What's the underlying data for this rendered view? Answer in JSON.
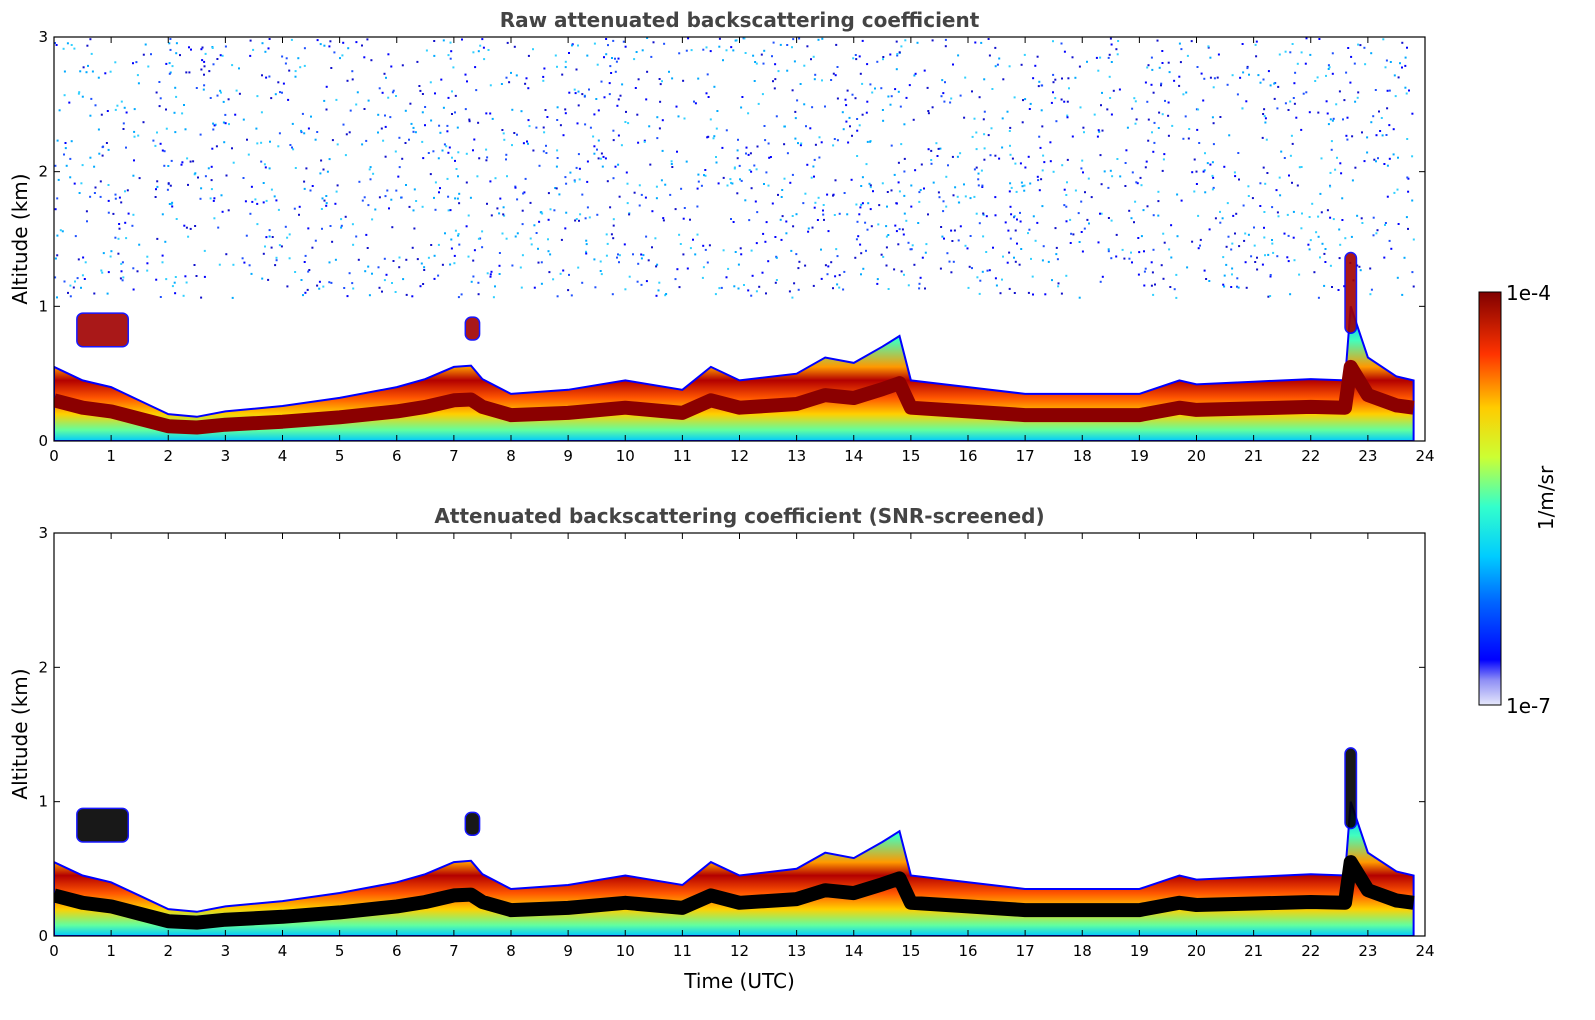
{
  "chart_data": [
    {
      "type": "heatmap",
      "title": "Raw attenuated backscattering coefficient",
      "xlabel": "",
      "ylabel": "Altitude (km)",
      "xlim": [
        0,
        24
      ],
      "ylim": [
        0,
        3
      ],
      "xticks": [
        "0",
        "1",
        "2",
        "3",
        "4",
        "5",
        "6",
        "7",
        "8",
        "9",
        "10",
        "11",
        "12",
        "13",
        "14",
        "15",
        "16",
        "17",
        "18",
        "19",
        "20",
        "21",
        "22",
        "23",
        "24"
      ],
      "yticks": [
        "0",
        "1",
        "2",
        "3"
      ],
      "colormap": "jet",
      "screened": false,
      "boundary_layer_top_km": {
        "time_utc": [
          0,
          0.5,
          1,
          1.5,
          2,
          2.5,
          3,
          4,
          5,
          6,
          6.5,
          7,
          7.3,
          7.5,
          8,
          9,
          10,
          11,
          11.5,
          12,
          13,
          13.5,
          14,
          14.5,
          14.8,
          15,
          16,
          17,
          18,
          19,
          19.7,
          20,
          21,
          22,
          22.6,
          22.7,
          23,
          23.5,
          23.8
        ],
        "altitude": [
          0.55,
          0.45,
          0.4,
          0.3,
          0.2,
          0.18,
          0.22,
          0.26,
          0.32,
          0.4,
          0.46,
          0.55,
          0.56,
          0.46,
          0.35,
          0.38,
          0.45,
          0.38,
          0.55,
          0.45,
          0.5,
          0.62,
          0.58,
          0.7,
          0.78,
          0.45,
          0.4,
          0.35,
          0.35,
          0.35,
          0.45,
          0.42,
          0.44,
          0.46,
          0.45,
          1.0,
          0.62,
          0.48,
          0.45
        ]
      },
      "features": [
        {
          "name": "elevated layer",
          "time_utc": [
            0.4,
            1.3
          ],
          "altitude_km": [
            0.7,
            0.95
          ]
        },
        {
          "name": "aerosol plume",
          "time_utc": [
            7.2,
            7.45
          ],
          "altitude_km": [
            0.75,
            0.92
          ]
        },
        {
          "name": "convective plume",
          "time_utc": [
            22.6,
            22.8
          ],
          "altitude_km": [
            0.8,
            1.4
          ]
        }
      ]
    },
    {
      "type": "heatmap",
      "title": "Attenuated backscattering coefficient (SNR-screened)",
      "xlabel": "Time (UTC)",
      "ylabel": "Altitude (km)",
      "xlim": [
        0,
        24
      ],
      "ylim": [
        0,
        3
      ],
      "xticks": [
        "0",
        "1",
        "2",
        "3",
        "4",
        "5",
        "6",
        "7",
        "8",
        "9",
        "10",
        "11",
        "12",
        "13",
        "14",
        "15",
        "16",
        "17",
        "18",
        "19",
        "20",
        "21",
        "22",
        "23",
        "24"
      ],
      "yticks": [
        "0",
        "1",
        "2",
        "3"
      ],
      "colormap": "jet",
      "screened": true
    }
  ],
  "colorbar": {
    "label": "1/m/sr",
    "max_label": "1e-4",
    "min_label": "1e-7",
    "range": [
      1e-07,
      0.0001
    ],
    "scale": "log"
  }
}
